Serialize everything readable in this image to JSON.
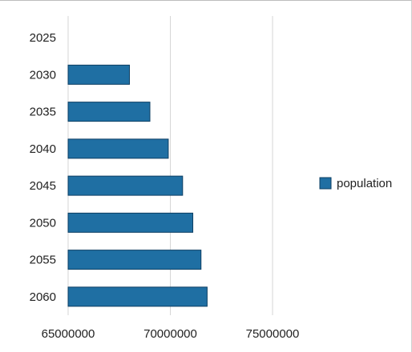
{
  "chart_data": {
    "type": "bar",
    "orientation": "horizontal",
    "categories": [
      "2025",
      "2030",
      "2035",
      "2040",
      "2045",
      "2050",
      "2055",
      "2060"
    ],
    "series": [
      {
        "name": "population",
        "values": [
          null,
          68000000,
          69000000,
          69900000,
          70600000,
          71100000,
          71500000,
          71800000
        ],
        "color": "#1f6fa3"
      }
    ],
    "xlim": [
      65000000,
      75000000
    ],
    "x_ticks": [
      65000000,
      70000000,
      75000000
    ],
    "x_tick_labels": [
      "65000000",
      "70000000",
      "75000000"
    ],
    "grid": "vertical",
    "legend": {
      "position": "right",
      "labels": [
        "population"
      ]
    },
    "title": "",
    "xlabel": "",
    "ylabel": ""
  }
}
